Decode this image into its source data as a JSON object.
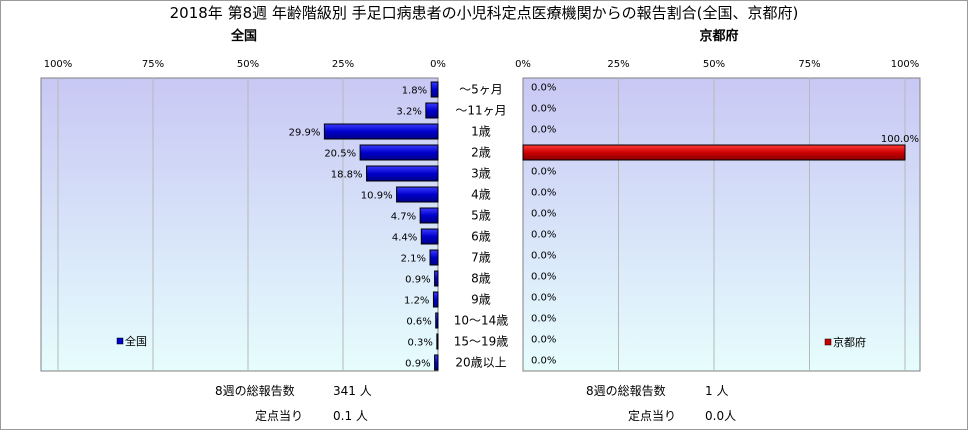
{
  "title": "2018年 第8週 年齢階級別 手足口病患者の小児科定点医療機関からの報告割合(全国、京都府)",
  "chart_data": [
    {
      "type": "bar",
      "orientation": "horizontal",
      "direction": "right-to-left",
      "title": "全国",
      "categories": [
        "～5ヶ月",
        "～11ヶ月",
        "1歳",
        "2歳",
        "3歳",
        "4歳",
        "5歳",
        "6歳",
        "7歳",
        "8歳",
        "9歳",
        "10～14歳",
        "15～19歳",
        "20歳以上"
      ],
      "series": [
        {
          "name": "全国",
          "values": [
            1.8,
            3.2,
            29.9,
            20.5,
            18.8,
            10.9,
            4.7,
            4.4,
            2.1,
            0.9,
            1.2,
            0.6,
            0.3,
            0.9
          ],
          "color": "#0000cc"
        }
      ],
      "value_labels": [
        "1.8%",
        "3.2%",
        "29.9%",
        "20.5%",
        "18.8%",
        "10.9%",
        "4.7%",
        "4.4%",
        "2.1%",
        "0.9%",
        "1.2%",
        "0.6%",
        "0.3%",
        "0.9%"
      ],
      "xlim": [
        0,
        100
      ],
      "ticks": [
        "100%",
        "75%",
        "50%",
        "25%",
        "0%"
      ],
      "grid": true,
      "legend": "bottom-left"
    },
    {
      "type": "bar",
      "orientation": "horizontal",
      "direction": "left-to-right",
      "title": "京都府",
      "categories": [
        "～5ヶ月",
        "～11ヶ月",
        "1歳",
        "2歳",
        "3歳",
        "4歳",
        "5歳",
        "6歳",
        "7歳",
        "8歳",
        "9歳",
        "10～14歳",
        "15～19歳",
        "20歳以上"
      ],
      "series": [
        {
          "name": "京都府",
          "values": [
            0,
            0,
            0,
            100,
            0,
            0,
            0,
            0,
            0,
            0,
            0,
            0,
            0,
            0
          ],
          "color": "#cc0000"
        }
      ],
      "value_labels": [
        "0.0%",
        "0.0%",
        "0.0%",
        "100.0%",
        "0.0%",
        "0.0%",
        "0.0%",
        "0.0%",
        "0.0%",
        "0.0%",
        "0.0%",
        "0.0%",
        "0.0%",
        "0.0%"
      ],
      "xlim": [
        0,
        100
      ],
      "ticks": [
        "0%",
        "25%",
        "50%",
        "75%",
        "100%"
      ],
      "grid": true,
      "legend": "bottom-right"
    }
  ],
  "summary": {
    "national": {
      "total_label": "8週の総報告数",
      "total_value": "341 人",
      "per_label": "定点当り",
      "per_value": "0.1 人"
    },
    "kyoto": {
      "total_label": "8週の総報告数",
      "total_value": "1 人",
      "per_label": "定点当り",
      "per_value": "0.0人"
    }
  },
  "colors": {
    "plot_top": "#c8c8f4",
    "plot_bottom": "#e6fdfd",
    "national_bar": "#0000cc",
    "kyoto_bar": "#cc0000"
  }
}
